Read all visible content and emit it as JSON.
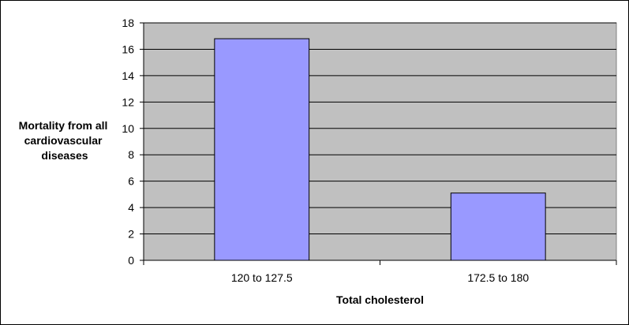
{
  "chart_data": {
    "type": "bar",
    "title": "",
    "xlabel": "Total cholesterol",
    "ylabel_lines": [
      "Mortality from all",
      "cardiovascular",
      "diseases"
    ],
    "categories": [
      "120 to 127.5",
      "172.5 to 180"
    ],
    "values": [
      16.8,
      5.1
    ],
    "ylim": [
      0,
      18
    ],
    "yticks": [
      0,
      2,
      4,
      6,
      8,
      10,
      12,
      14,
      16,
      18
    ],
    "grid": true,
    "legend": "none",
    "colors": {
      "plot_background": "#c0c0c0",
      "bar_fill": "#9999ff",
      "bar_stroke": "#000000",
      "gridline": "#000000"
    }
  }
}
